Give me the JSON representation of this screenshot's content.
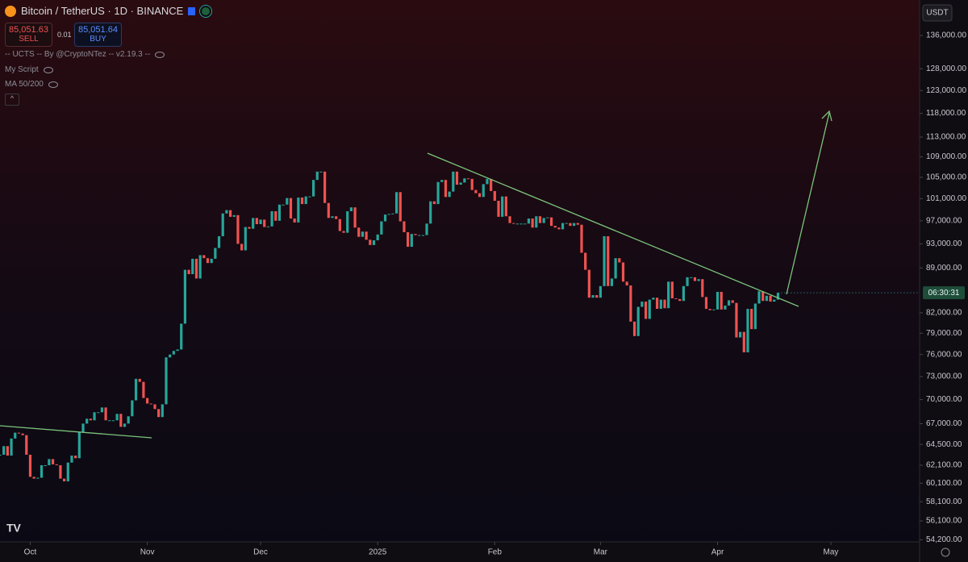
{
  "toolbar": {
    "sell_price": "85,051.63",
    "sell": "SELL",
    "spread": "0.01",
    "buy_price": "85,051.64",
    "buy": "BUY",
    "indicators": [
      "-- UCTS -- By @CryptoNTez -- v2.19.3 --",
      "My Script",
      "MA 50/200"
    ],
    "countdown": "06:30:31"
  },
  "chart_data": {
    "type": "candlestick",
    "title": "Bitcoin / TetherUS · 1D · BINANCE",
    "y_unit": "USDT",
    "log_scale": true,
    "up_color": "#26a69a",
    "down_color": "#ef5350",
    "xlim": [
      0,
      243.5
    ],
    "xticks": [
      {
        "value": 8,
        "label": "Oct"
      },
      {
        "value": 39,
        "label": "Nov"
      },
      {
        "value": 69,
        "label": "Dec"
      },
      {
        "value": 100,
        "label": "2025"
      },
      {
        "value": 131,
        "label": "Feb"
      },
      {
        "value": 159,
        "label": "Mar"
      },
      {
        "value": 190,
        "label": "Apr"
      },
      {
        "value": 220,
        "label": "May"
      }
    ],
    "ylim": [
      54000,
      145100
    ],
    "yticks": [
      {
        "value": 136000,
        "label": "136,000.00"
      },
      {
        "value": 128000,
        "label": "128,000.00"
      },
      {
        "value": 123000,
        "label": "123,000.00"
      },
      {
        "value": 118000,
        "label": "118,000.00"
      },
      {
        "value": 113000,
        "label": "113,000.00"
      },
      {
        "value": 109000,
        "label": "109,000.00"
      },
      {
        "value": 105000,
        "label": "105,000.00"
      },
      {
        "value": 101000,
        "label": "101,000.00"
      },
      {
        "value": 97000,
        "label": "97,000.00"
      },
      {
        "value": 93000,
        "label": "93,000.00"
      },
      {
        "value": 89000,
        "label": "89,000.00"
      },
      {
        "value": 82000,
        "label": "82,000.00"
      },
      {
        "value": 79000,
        "label": "79,000.00"
      },
      {
        "value": 76000,
        "label": "76,000.00"
      },
      {
        "value": 73000,
        "label": "73,000.00"
      },
      {
        "value": 70000,
        "label": "70,000.00"
      },
      {
        "value": 67000,
        "label": "67,000.00"
      },
      {
        "value": 64500,
        "label": "64,500.00"
      },
      {
        "value": 62100,
        "label": "62,100.00"
      },
      {
        "value": 60100,
        "label": "60,100.00"
      },
      {
        "value": 58100,
        "label": "58,100.00"
      },
      {
        "value": 56100,
        "label": "56,100.00"
      },
      {
        "value": 54200,
        "label": "54,200.00"
      }
    ],
    "closes": [
      63300,
      64300,
      63200,
      65200,
      65900,
      65800,
      65600,
      63300,
      60800,
      60600,
      60700,
      62100,
      62100,
      62800,
      62200,
      62100,
      60600,
      60300,
      62400,
      63200,
      62900,
      66000,
      67000,
      67600,
      67400,
      68400,
      68400,
      69000,
      67400,
      67400,
      67400,
      68200,
      66600,
      67000,
      67900,
      69900,
      72700,
      72300,
      70200,
      69500,
      69400,
      68800,
      67800,
      69400,
      75600,
      76000,
      76500,
      76700,
      80400,
      88700,
      88000,
      90500,
      87300,
      91100,
      90600,
      89800,
      90500,
      92300,
      94300,
      98300,
      98900,
      97700,
      98000,
      93000,
      91900,
      95900,
      95600,
      97500,
      96400,
      97200,
      95900,
      96000,
      98700,
      97000,
      99900,
      99900,
      101100,
      97400,
      96700,
      101200,
      100000,
      101400,
      101400,
      104500,
      106100,
      106100,
      100200,
      97500,
      97800,
      97300,
      95200,
      94900,
      98700,
      99400,
      95800,
      94200,
      95100,
      93700,
      92800,
      93600,
      94600,
      96900,
      98100,
      98200,
      98300,
      102200,
      96900,
      95000,
      92500,
      94700,
      94500,
      94500,
      94500,
      96500,
      100500,
      100000,
      104100,
      104500,
      101300,
      102300,
      106100,
      103600,
      104000,
      104800,
      104700,
      102600,
      102000,
      101300,
      103700,
      104700,
      102400,
      100600,
      97700,
      101400,
      97800,
      96600,
      96500,
      96500,
      96500,
      96500,
      97400,
      95800,
      97800,
      96600,
      97500,
      97600,
      96100,
      95800,
      95500,
      96600,
      96600,
      96100,
      96600,
      96300,
      91500,
      88700,
      84300,
      84700,
      84300,
      86100,
      94300,
      86100,
      87300,
      90600,
      89900,
      86800,
      86200,
      80700,
      78600,
      82900,
      83700,
      81100,
      84000,
      84300,
      82600,
      84000,
      82700,
      86800,
      84200,
      84100,
      83800,
      86100,
      87500,
      87500,
      86900,
      87200,
      84400,
      82600,
      82400,
      82500,
      85200,
      82500,
      83100,
      83900,
      83500,
      78400,
      79200,
      76300,
      82600,
      79600,
      83400,
      85300,
      83800,
      84600,
      83700,
      84000,
      85051.63
    ]
  }
}
